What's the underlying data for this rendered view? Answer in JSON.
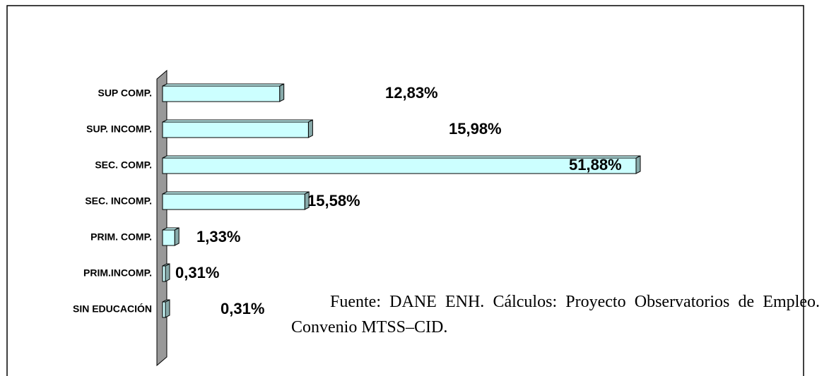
{
  "chart_data": {
    "type": "bar3d-horizontal",
    "categories": [
      "SUP COMP.",
      "SUP. INCOMP.",
      "SEC. COMP.",
      "SEC. INCOMP.",
      "PRIM. COMP.",
      "PRIM.INCOMP.",
      "SIN EDUCACIÓN"
    ],
    "values": [
      12.83,
      15.98,
      51.88,
      15.58,
      1.33,
      0.31,
      0.31
    ],
    "value_labels": [
      "12,83%",
      "15,98%",
      "51,88%",
      "15,58%",
      "1,33%",
      "0,31%",
      "0,31%"
    ],
    "color": "#ccffff",
    "note": "Fuente: DANE ENH. Cálculos: Proyecto Observatorios de Empleo. Convenio MTSS–CID."
  }
}
